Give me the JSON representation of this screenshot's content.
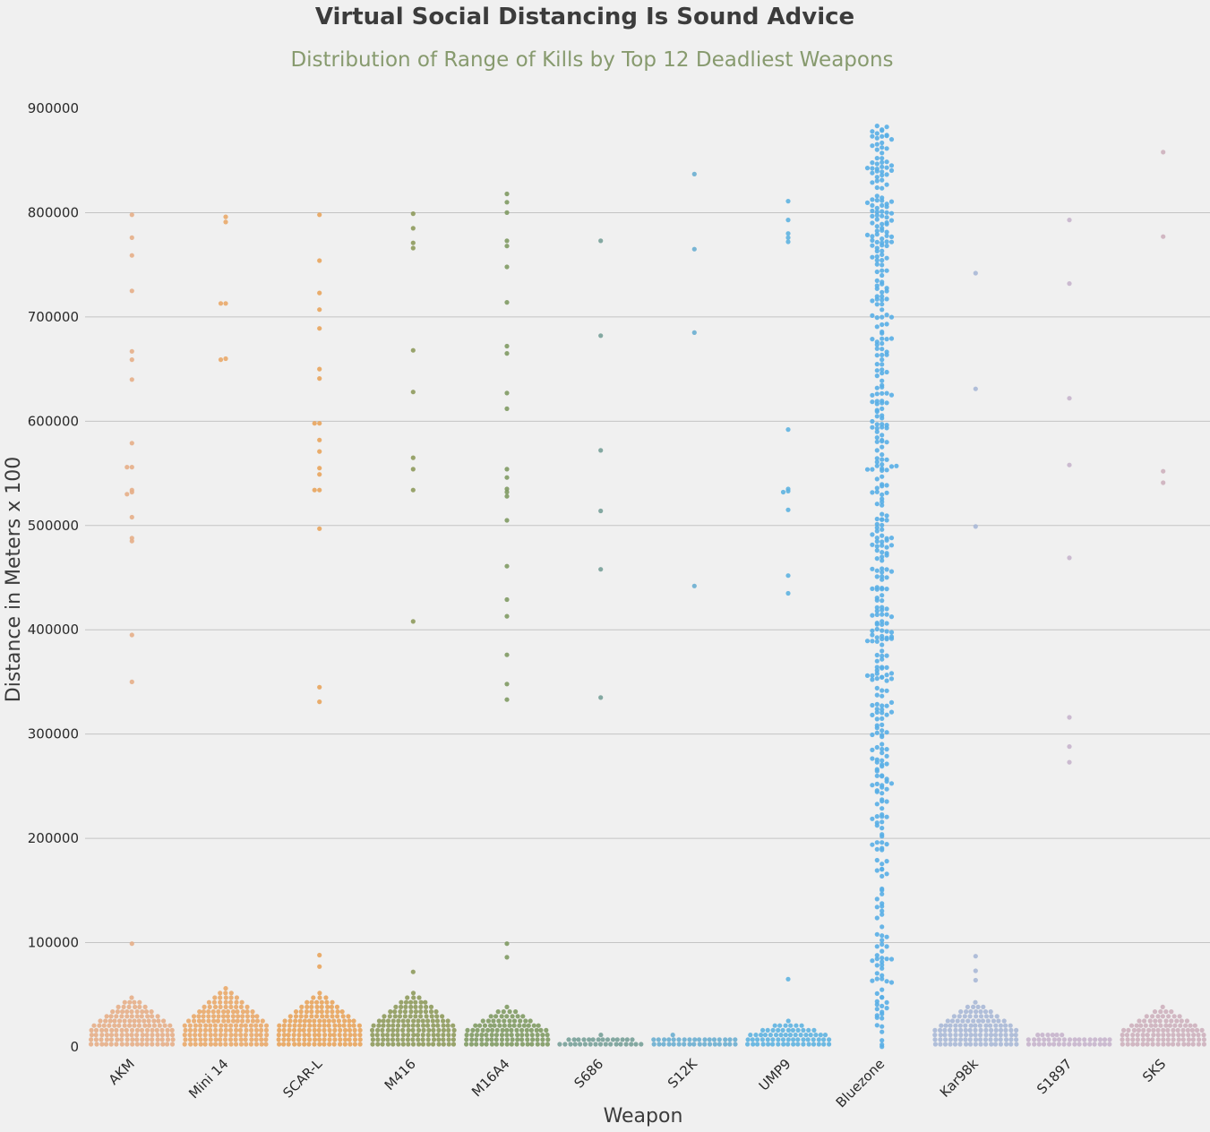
{
  "chart_data": {
    "type": "scatter",
    "kind": "swarmplot",
    "title": "Virtual Social Distancing Is Sound Advice",
    "subtitle": "Distribution of Range of Kills by Top 12 Deadliest Weapons",
    "xlabel": "Weapon",
    "ylabel": "Distance in Meters x 100",
    "ylim": [
      0,
      900000
    ],
    "yticks": [
      0,
      100000,
      200000,
      300000,
      400000,
      500000,
      600000,
      700000,
      800000,
      900000
    ],
    "grid": "horizontal",
    "categories": [
      "AKM",
      "Mini 14",
      "SCAR-L",
      "M416",
      "M16A4",
      "S686",
      "S12K",
      "UMP9",
      "Bluezone",
      "Kar98k",
      "S1897",
      "SKS"
    ],
    "colors": [
      "#e5ae87",
      "#e9a869",
      "#e8a45c",
      "#8e9a5c",
      "#7f9a63",
      "#77a098",
      "#6aaed0",
      "#5eb2e0",
      "#58aee6",
      "#a9b8d6",
      "#c7b4cc",
      "#cdb0bc"
    ],
    "series": [
      {
        "category": "AKM",
        "cluster": {
          "max": 46000,
          "count": 300
        },
        "outliers": [
          798000,
          776000,
          759000,
          725000,
          667000,
          659000,
          640000,
          579000,
          556000,
          556000,
          534000,
          532000,
          530000,
          508000,
          488000,
          485000,
          395000,
          350000,
          99000
        ]
      },
      {
        "category": "Mini 14",
        "cluster": {
          "max": 58000,
          "count": 340
        },
        "outliers": [
          796000,
          791000,
          713000,
          713000,
          660000,
          659000
        ]
      },
      {
        "category": "SCAR-L",
        "cluster": {
          "max": 52000,
          "count": 320
        },
        "outliers": [
          798000,
          754000,
          723000,
          707000,
          689000,
          650000,
          641000,
          598000,
          598000,
          582000,
          571000,
          555000,
          549000,
          534000,
          534000,
          497000,
          345000,
          331000,
          88000,
          77000
        ]
      },
      {
        "category": "M416",
        "cluster": {
          "max": 50000,
          "count": 300
        },
        "outliers": [
          799000,
          785000,
          771000,
          766000,
          668000,
          628000,
          565000,
          554000,
          534000,
          408000,
          72000
        ]
      },
      {
        "category": "M16A4",
        "cluster": {
          "max": 36000,
          "count": 340
        },
        "outliers": [
          818000,
          810000,
          800000,
          773000,
          768000,
          748000,
          714000,
          672000,
          665000,
          627000,
          612000,
          554000,
          546000,
          535000,
          532000,
          528000,
          505000,
          461000,
          429000,
          413000,
          376000,
          348000,
          333000,
          99000,
          86000
        ]
      },
      {
        "category": "S686",
        "cluster": {
          "max": 12000,
          "count": 45
        },
        "outliers": [
          773000,
          682000,
          572000,
          514000,
          458000,
          335000
        ]
      },
      {
        "category": "S12K",
        "cluster": {
          "max": 14000,
          "count": 35
        },
        "outliers": [
          837000,
          765000,
          685000,
          442000
        ]
      },
      {
        "category": "UMP9",
        "cluster": {
          "max": 23000,
          "count": 130
        },
        "outliers": [
          811000,
          793000,
          780000,
          776000,
          772000,
          592000,
          535000,
          533000,
          532000,
          515000,
          452000,
          435000,
          65000
        ]
      },
      {
        "category": "Bluezone",
        "cluster": {
          "max": 0,
          "count": 0
        },
        "spread": {
          "min": 0,
          "max": 884000,
          "count": 470
        },
        "outliers": []
      },
      {
        "category": "Kar98k",
        "cluster": {
          "max": 43000,
          "count": 300
        },
        "outliers": [
          742000,
          631000,
          499000,
          87000,
          73000,
          64000
        ]
      },
      {
        "category": "S1897",
        "cluster": {
          "max": 21000,
          "count": 40
        },
        "outliers": [
          793000,
          732000,
          622000,
          558000,
          469000,
          316000,
          288000,
          273000
        ]
      },
      {
        "category": "SKS",
        "cluster": {
          "max": 40000,
          "count": 300
        },
        "outliers": [
          858000,
          777000,
          552000,
          541000
        ]
      }
    ]
  }
}
